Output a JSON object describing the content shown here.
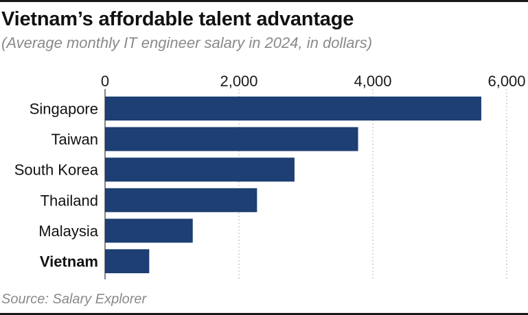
{
  "header": {
    "title": "Vietnam’s affordable talent advantage",
    "subtitle": "(Average monthly IT engineer salary in 2024, in dollars)"
  },
  "footer": {
    "source": "Source: Salary Explorer"
  },
  "colors": {
    "bar": "#1d3f73",
    "grid": "#b5b5b5",
    "text": "#1a1a1a"
  },
  "chart_data": {
    "type": "bar",
    "orientation": "horizontal",
    "categories": [
      "Singapore",
      "Taiwan",
      "South Korea",
      "Thailand",
      "Malaysia",
      "Vietnam"
    ],
    "values": [
      5620,
      3780,
      2830,
      2270,
      1310,
      660
    ],
    "highlight": "Vietnam",
    "ticks": [
      "0",
      "2,000",
      "4,000",
      "6,000"
    ],
    "tick_values": [
      0,
      2000,
      4000,
      6000
    ],
    "xlim": [
      0,
      6000
    ],
    "grid": true,
    "axis_position": "top"
  }
}
